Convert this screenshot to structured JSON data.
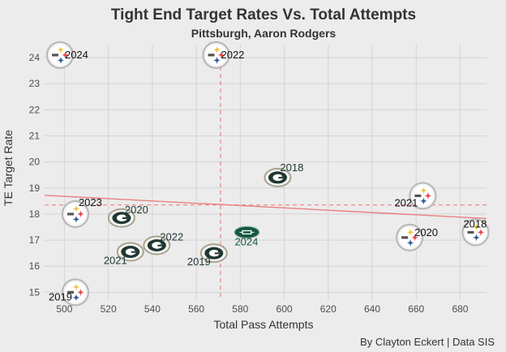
{
  "chart_data": {
    "type": "scatter",
    "title": "Tight End Target Rates Vs. Total Attempts",
    "subtitle": "Pittsburgh, Aaron Rodgers",
    "xlabel": "Total Pass Attempts",
    "ylabel": "TE Target Rate",
    "caption": "By Clayton Eckert | Data SIS",
    "xlim": [
      491,
      692
    ],
    "ylim": [
      14.7,
      24.5
    ],
    "xticks": [
      500,
      520,
      540,
      560,
      580,
      600,
      620,
      640,
      660,
      680
    ],
    "yticks": [
      15,
      16,
      17,
      18,
      19,
      20,
      21,
      22,
      23,
      24
    ],
    "reference_lines": {
      "x_mean": 571,
      "y_mean": 18.35
    },
    "trend_line": {
      "x": [
        491,
        692
      ],
      "y": [
        18.72,
        17.83
      ]
    },
    "grid": true,
    "colors": {
      "background": "#ececec",
      "grid": "#d4d4d4",
      "reference": "#f08080",
      "trend": "#e88080",
      "steelers_gold": "#f4c542",
      "steelers_red": "#e8474c",
      "steelers_blue": "#2e5b9a",
      "packers_green": "#203731",
      "jets_green": "#125740"
    },
    "points": [
      {
        "team": "PIT",
        "label": "2024",
        "x": 498,
        "y": 24.1,
        "logo": "steelers-logo"
      },
      {
        "team": "PIT",
        "label": "2022",
        "x": 569,
        "y": 24.1,
        "logo": "steelers-logo"
      },
      {
        "team": "PIT",
        "label": "2023",
        "x": 505,
        "y": 18.0,
        "logo": "steelers-logo"
      },
      {
        "team": "PIT",
        "label": "2019",
        "x": 505,
        "y": 15.0,
        "logo": "steelers-logo"
      },
      {
        "team": "PIT",
        "label": "2021",
        "x": 663,
        "y": 18.7,
        "logo": "steelers-logo"
      },
      {
        "team": "PIT",
        "label": "2020",
        "x": 657,
        "y": 17.1,
        "logo": "steelers-logo"
      },
      {
        "team": "PIT",
        "label": "2018",
        "x": 687,
        "y": 17.3,
        "logo": "steelers-logo"
      },
      {
        "team": "GB",
        "label": "2018",
        "x": 597,
        "y": 19.4,
        "logo": "packers-logo"
      },
      {
        "team": "GB",
        "label": "2020",
        "x": 526,
        "y": 17.85,
        "logo": "packers-logo"
      },
      {
        "team": "GB",
        "label": "2022",
        "x": 542,
        "y": 16.8,
        "logo": "packers-logo"
      },
      {
        "team": "GB",
        "label": "2021",
        "x": 530,
        "y": 16.55,
        "logo": "packers-logo"
      },
      {
        "team": "GB",
        "label": "2019",
        "x": 568,
        "y": 16.5,
        "logo": "packers-logo"
      },
      {
        "team": "NYJ",
        "label": "2024",
        "x": 583,
        "y": 17.3,
        "logo": "jets-logo"
      }
    ]
  }
}
